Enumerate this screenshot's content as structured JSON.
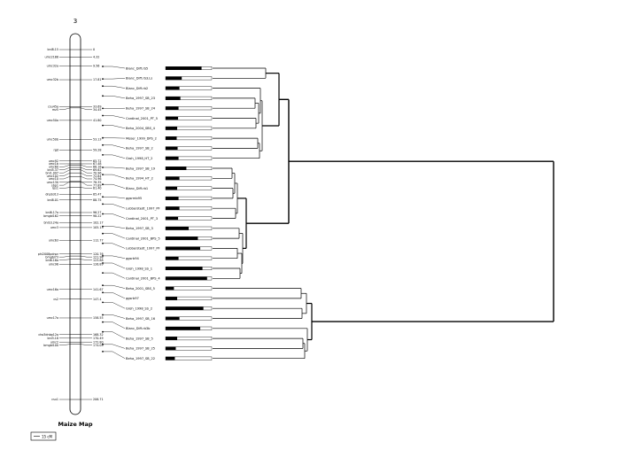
{
  "map": {
    "chromosome": "3",
    "title": "Maize Map",
    "scale_label": "15 cM",
    "markers": [
      {
        "name": "bnl8.15",
        "pos": "0"
      },
      {
        "name": "umc2188",
        "pos": "4.32"
      },
      {
        "name": "umc32a",
        "pos": "9.56"
      },
      {
        "name": "umc32b",
        "pos": "17.81"
      },
      {
        "name": "csu45a",
        "pos": "33.69"
      },
      {
        "name": "mz5",
        "pos": "34.45"
      },
      {
        "name": "umc50a",
        "pos": "41.80"
      },
      {
        "name": "umc50b",
        "pos": "53.13"
      },
      {
        "name": "rgd",
        "pos": "59.28"
      },
      {
        "name": "umc92",
        "pos": "65.72"
      },
      {
        "name": "umc1b",
        "pos": "67.48"
      },
      {
        "name": "umc60",
        "pos": "68.16"
      },
      {
        "name": "bnl5.37",
        "pos": "69.62"
      },
      {
        "name": "bnl1.097",
        "pos": "70.96"
      },
      {
        "name": "umc102",
        "pos": "72.84"
      },
      {
        "name": "umc10",
        "pos": "74.96"
      },
      {
        "name": "umc130",
        "pos": "78.35"
      },
      {
        "name": "sbp1",
        "pos": "77.89"
      },
      {
        "name": "rps1",
        "pos": "81.40"
      },
      {
        "name": "dnpb313",
        "pos": "85.47"
      },
      {
        "name": "bnl8.01",
        "pos": "88.75"
      },
      {
        "name": "bnl6.17a",
        "pos": "96.27"
      },
      {
        "name": "bmgbl162",
        "pos": "98.22"
      },
      {
        "name": "bnl10.24a",
        "pos": "102.17"
      },
      {
        "name": "umc3",
        "pos": "105.13"
      },
      {
        "name": "umc63",
        "pos": "112.77"
      },
      {
        "name": "phi2008pdnpr",
        "pos": "120.76"
      },
      {
        "name": "bmgbl73",
        "pos": "121.98"
      },
      {
        "name": "bnl6.16a",
        "pos": "123.88"
      },
      {
        "name": "umc96",
        "pos": "126.89"
      },
      {
        "name": "umc16a",
        "pos": "141.67"
      },
      {
        "name": "cs2",
        "pos": "147.4"
      },
      {
        "name": "umc17a",
        "pos": "158.55"
      },
      {
        "name": "cho3dnbp12a",
        "pos": "168.32"
      },
      {
        "name": "bnl3.18",
        "pos": "170.49"
      },
      {
        "name": "umc2",
        "pos": "172.80"
      },
      {
        "name": "bmgbl100",
        "pos": "174.05"
      },
      {
        "name": "csu1",
        "pos": "206.71"
      }
    ]
  },
  "traits": [
    {
      "label": "Blanc_Diff.rb5",
      "bar": 0.78
    },
    {
      "label": "Blanc_Diff.rb3.Ls",
      "bar": 0.35
    },
    {
      "label": "Blanc_Diff.rb2",
      "bar": 0.3
    },
    {
      "label": "Beha_1997_SB_23",
      "bar": 0.32
    },
    {
      "label": "Beha_1997_SB_24",
      "bar": 0.28
    },
    {
      "label": "Cardinal_2001_PT_5",
      "bar": 0.27
    },
    {
      "label": "Beha_2004_SBS_4",
      "bar": 0.25
    },
    {
      "label": "Moser_1999_DPS_2",
      "bar": 0.24
    },
    {
      "label": "Beha_1997_SB_2",
      "bar": 0.26
    },
    {
      "label": "Groh_1998_HT_2",
      "bar": 0.28
    },
    {
      "label": "Beha_1997_SB_19",
      "bar": 0.45
    },
    {
      "label": "Beha_1994_HT_2",
      "bar": 0.3
    },
    {
      "label": "Blanc_Diff.rb1",
      "bar": 0.25
    },
    {
      "label": "ggsrmb95",
      "bar": 0.28
    },
    {
      "label": "Lubberstedt_1997_PF",
      "bar": 0.3
    },
    {
      "label": "Cardinal_2001_PT_3",
      "bar": 0.27
    },
    {
      "label": "Beha_1997_SB_3",
      "bar": 0.5
    },
    {
      "label": "Cardinal_2001_BPS_5",
      "bar": 0.7
    },
    {
      "label": "Lubberstedt_1997_PF",
      "bar": 0.75
    },
    {
      "label": "ggsrb94",
      "bar": 0.28
    },
    {
      "label": "Groh_1998_SS_1",
      "bar": 0.8
    },
    {
      "label": "Cardinal_2001_BPS_4",
      "bar": 0.9
    },
    {
      "label": "Beha_2001_SBS_5",
      "bar": 0.18
    },
    {
      "label": "ggsrb97",
      "bar": 0.25
    },
    {
      "label": "Groh_1998_SS_2",
      "bar": 0.82
    },
    {
      "label": "Beha_1997_SB_16",
      "bar": 0.3
    },
    {
      "label": "Blanc_Diff.rb3b",
      "bar": 0.75
    },
    {
      "label": "Beha_1997_SB_5",
      "bar": 0.25
    },
    {
      "label": "Beha_1997_SB_25",
      "bar": 0.22
    },
    {
      "label": "Beha_1997_SB_22",
      "bar": 0.2
    }
  ]
}
